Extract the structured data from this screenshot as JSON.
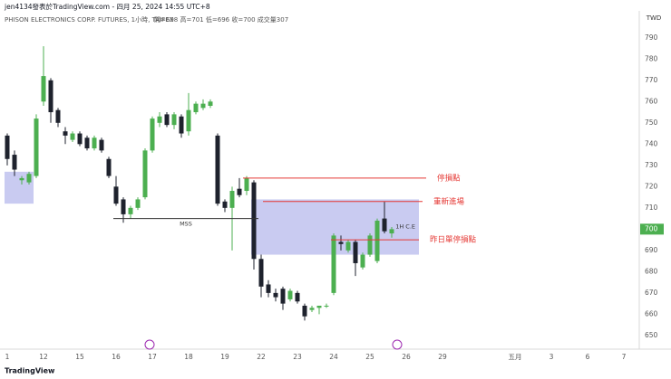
{
  "header": {
    "byline": "jen4134發表於TradingView.com - 四月 25, 2024 14:55 UTC+8",
    "symbol": "PHISON ELECTRONICS CORP. FUTURES, 1小時, TAIFEX",
    "ohlc_info": "開=698 高=701 低=696 收=700 成交量307",
    "currency": "TWD"
  },
  "brand": "TradingView",
  "chart_data": {
    "type": "candlestick",
    "categories": [
      "1",
      null,
      null,
      null,
      null,
      "12",
      null,
      null,
      null,
      null,
      "15",
      null,
      null,
      null,
      null,
      "16",
      null,
      null,
      null,
      null,
      "17",
      null,
      null,
      null,
      null,
      "18",
      null,
      null,
      null,
      null,
      "19",
      null,
      null,
      null,
      null,
      "22",
      null,
      null,
      null,
      null,
      "23",
      null,
      null,
      null,
      null,
      "24",
      null,
      null,
      null,
      null,
      "25",
      null,
      null,
      null,
      null,
      "26",
      null,
      null,
      null,
      null,
      "29",
      null,
      null,
      null,
      null,
      null,
      null,
      null,
      null,
      null,
      "五月",
      null,
      null,
      null,
      null,
      "3",
      null,
      null,
      null,
      null,
      "6",
      null,
      null,
      null,
      null,
      "7",
      null
    ],
    "open": [
      744,
      735,
      723,
      722,
      725,
      760,
      770,
      756,
      746,
      742,
      745,
      743,
      738,
      742,
      733,
      720,
      714,
      707,
      710,
      715,
      737,
      750,
      754,
      749,
      753,
      746,
      755,
      757,
      758,
      744,
      713,
      710,
      719,
      718,
      722,
      686,
      674,
      670,
      672,
      667,
      670,
      664,
      662,
      663,
      664,
      670,
      694,
      690,
      694,
      682,
      688,
      685,
      705,
      698,
      null,
      null,
      null,
      null,
      null,
      null,
      null,
      null,
      null,
      null,
      null,
      null,
      null,
      null,
      null,
      null,
      null,
      null,
      null,
      null,
      null,
      null,
      null,
      null,
      null,
      null,
      null,
      null,
      null,
      null,
      null,
      null,
      null
    ],
    "high": [
      745,
      737,
      725,
      727,
      754,
      786,
      771,
      757,
      748,
      746,
      746,
      744,
      744,
      743,
      734,
      725,
      715,
      711,
      715,
      738,
      753,
      755,
      755,
      755,
      754,
      764,
      760,
      761,
      761,
      745,
      714,
      720,
      724,
      725,
      723,
      688,
      676,
      672,
      673,
      672,
      671,
      665,
      664,
      664,
      665,
      698,
      697,
      695,
      695,
      689,
      698,
      705,
      713,
      701,
      null,
      null,
      null,
      null,
      null,
      null,
      null,
      null,
      null,
      null,
      null,
      null,
      null,
      null,
      null,
      null,
      null,
      null,
      null,
      null,
      null,
      null,
      null,
      null,
      null,
      null,
      null,
      null,
      null,
      null,
      null,
      null,
      null
    ],
    "low": [
      730,
      725,
      721,
      721,
      724,
      758,
      750,
      748,
      740,
      741,
      739,
      737,
      737,
      736,
      724,
      711,
      703,
      705,
      709,
      714,
      736,
      748,
      748,
      747,
      743,
      744,
      754,
      756,
      757,
      711,
      708,
      690,
      715,
      716,
      681,
      668,
      668,
      666,
      662,
      666,
      665,
      657,
      661,
      660,
      663,
      669,
      690,
      689,
      678,
      681,
      687,
      684,
      698,
      696,
      null,
      null,
      null,
      null,
      null,
      null,
      null,
      null,
      null,
      null,
      null,
      null,
      null,
      null,
      null,
      null,
      null,
      null,
      null,
      null,
      null,
      null,
      null,
      null,
      null,
      null,
      null,
      null,
      null,
      null,
      null,
      null,
      null
    ],
    "close": [
      733,
      728,
      724,
      726,
      752,
      772,
      755,
      750,
      744,
      745,
      740,
      738,
      743,
      737,
      725,
      712,
      707,
      710,
      714,
      737,
      752,
      753,
      749,
      754,
      745,
      756,
      759,
      759,
      760,
      712,
      710,
      718,
      716,
      724,
      686,
      673,
      670,
      668,
      665,
      671,
      666,
      659,
      663,
      664,
      664,
      697,
      693,
      694,
      684,
      688,
      697,
      704,
      699,
      700,
      null,
      null,
      null,
      null,
      null,
      null,
      null,
      null,
      null,
      null,
      null,
      null,
      null,
      null,
      null,
      null,
      null,
      null,
      null,
      null,
      null,
      null,
      null,
      null,
      null,
      null,
      null,
      null,
      null,
      null,
      null,
      null,
      null
    ],
    "up_color": "#4caf50",
    "down_color": "#1e222d",
    "ylim": [
      644,
      795
    ],
    "yticks": [
      650,
      660,
      670,
      680,
      690,
      700,
      710,
      720,
      730,
      740,
      750,
      760,
      770,
      780,
      790
    ],
    "levels": [
      {
        "label": "停損點",
        "value": 724,
        "color": "#e53935"
      },
      {
        "label": "重新進場",
        "value": 713,
        "color": "#e53935"
      },
      {
        "label": "昨日單停損點",
        "value": 695,
        "color": "#e53935"
      },
      {
        "label": "MSS",
        "value": 705,
        "color": "#333333"
      }
    ],
    "zones": [
      {
        "low": 712,
        "high": 727,
        "color": "#b7b9ec"
      },
      {
        "low": 688,
        "high": 714,
        "label": "1H C.E",
        "color": "#b7b9ec"
      }
    ]
  }
}
